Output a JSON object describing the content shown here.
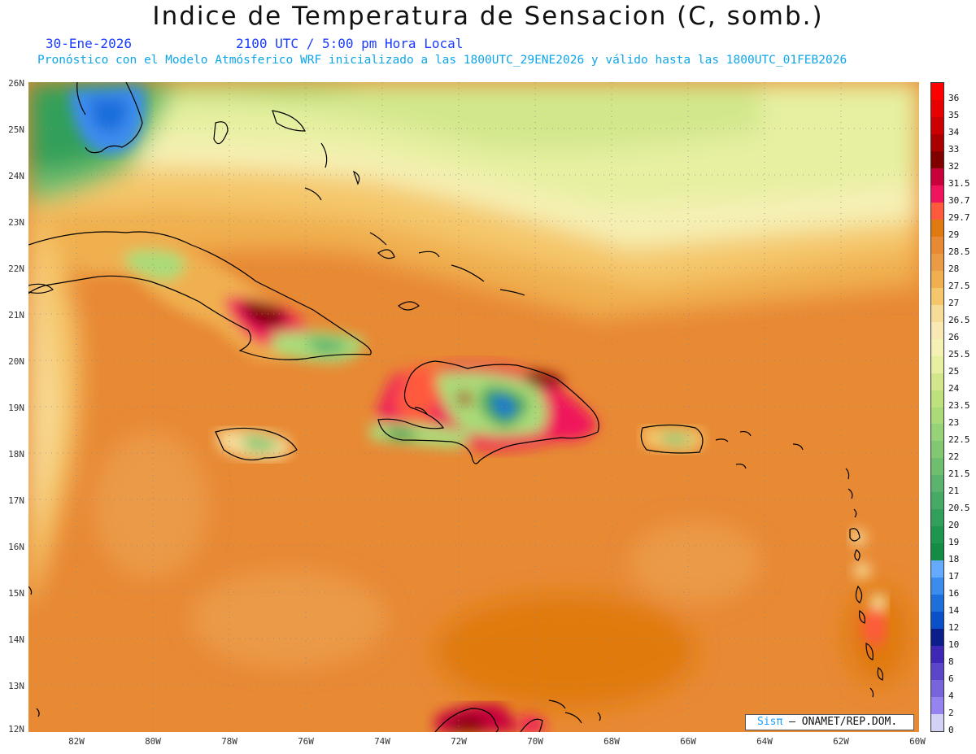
{
  "title": "Indice de Temperatura de Sensacion (C, somb.)",
  "date": "30-Ene-2026",
  "time": "2100 UTC / 5:00 pm Hora Local",
  "subtitle": "Pronóstico con el Modelo Atmósferico WRF inicializado a las 1800UTC_29ENE2026 y válido hasta las  1800UTC_01FEB2026",
  "lat_labels": [
    "26N",
    "25N",
    "24N",
    "23N",
    "22N",
    "21N",
    "20N",
    "19N",
    "18N",
    "17N",
    "16N",
    "15N",
    "14N",
    "13N",
    "12N"
  ],
  "lon_labels": [
    "82W",
    "80W",
    "78W",
    "76W",
    "74W",
    "72W",
    "70W",
    "68W",
    "66W",
    "64W",
    "62W",
    "60W"
  ],
  "legend": [
    {
      "label": "36",
      "color": "#ff0000"
    },
    {
      "label": "35",
      "color": "#e60000"
    },
    {
      "label": "34",
      "color": "#cc0000"
    },
    {
      "label": "33",
      "color": "#aa0000"
    },
    {
      "label": "32",
      "color": "#800000"
    },
    {
      "label": "31.5",
      "color": "#c8003c"
    },
    {
      "label": "30.7",
      "color": "#f0145c"
    },
    {
      "label": "29.7",
      "color": "#ff5a3c"
    },
    {
      "label": "29",
      "color": "#e07a10"
    },
    {
      "label": "28.5",
      "color": "#e88934"
    },
    {
      "label": "28",
      "color": "#eb9a46"
    },
    {
      "label": "27.5",
      "color": "#f0b050"
    },
    {
      "label": "27",
      "color": "#f5c76c"
    },
    {
      "label": "26.5",
      "color": "#f7dc98"
    },
    {
      "label": "26",
      "color": "#f8e9b4"
    },
    {
      "label": "25.5",
      "color": "#f5f0b4"
    },
    {
      "label": "25",
      "color": "#e6f0a0"
    },
    {
      "label": "24",
      "color": "#d2e78c"
    },
    {
      "label": "23.5",
      "color": "#bee17d"
    },
    {
      "label": "23",
      "color": "#aadb78"
    },
    {
      "label": "22.5",
      "color": "#96d278"
    },
    {
      "label": "22",
      "color": "#82c873"
    },
    {
      "label": "21.5",
      "color": "#6ebe6e"
    },
    {
      "label": "21",
      "color": "#5ab46e"
    },
    {
      "label": "20.5",
      "color": "#46aa64"
    },
    {
      "label": "20",
      "color": "#32a05a"
    },
    {
      "label": "19",
      "color": "#1e9650"
    },
    {
      "label": "18",
      "color": "#148c46"
    },
    {
      "label": "17",
      "color": "#64aaff"
    },
    {
      "label": "16",
      "color": "#3c8cf0"
    },
    {
      "label": "14",
      "color": "#1e6edc"
    },
    {
      "label": "12",
      "color": "#0a50c8"
    },
    {
      "label": "10",
      "color": "#0a1e8c"
    },
    {
      "label": "8",
      "color": "#3c28b4"
    },
    {
      "label": "6",
      "color": "#5a46c8"
    },
    {
      "label": "4",
      "color": "#7864dc"
    },
    {
      "label": "2",
      "color": "#9682f0"
    },
    {
      "label": "0",
      "color": "#d2d2f5"
    }
  ],
  "credit": {
    "sis": "Sisπ",
    "org": " – ONAMET/REP.DOM."
  }
}
